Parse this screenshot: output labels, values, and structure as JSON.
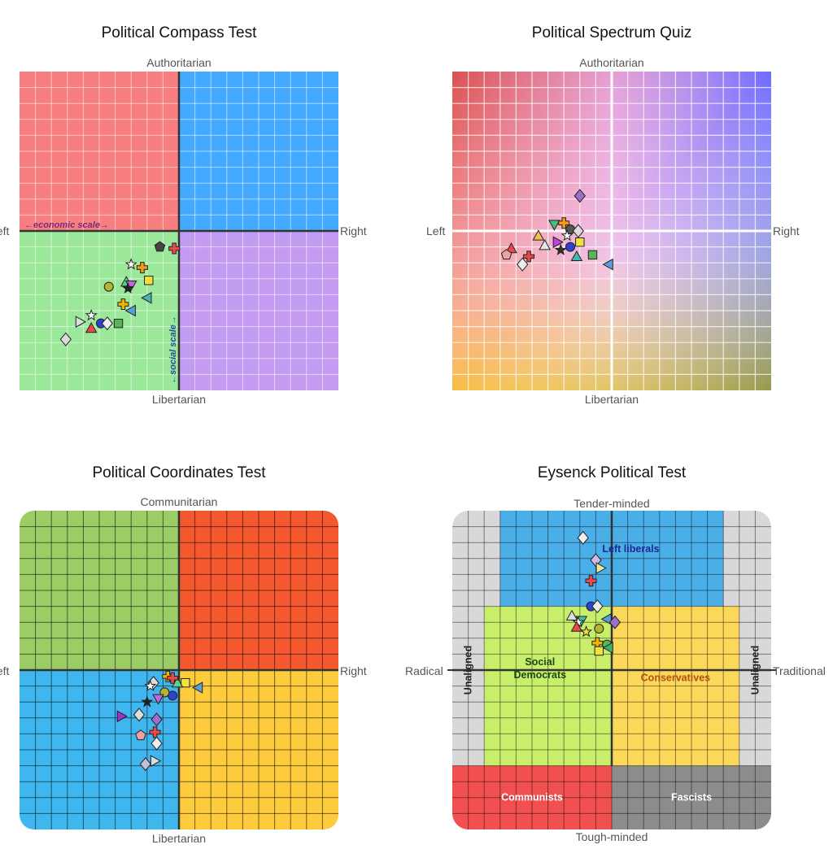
{
  "charts": [
    {
      "id": "compass",
      "title": "Political Compass Test",
      "top_label": "Authoritarian",
      "bottom_label": "Libertarian",
      "left_label": "Left",
      "right_label": "Right",
      "inner_labels": {
        "x_scale": "←economic scale→",
        "y_scale": "←social scale→"
      },
      "quadrant_colors": {
        "top_left": "#f77f7f",
        "top_right": "#44aaff",
        "bottom_left": "#9be89b",
        "bottom_right": "#c39cf2"
      }
    },
    {
      "id": "spectrum",
      "title": "Political Spectrum Quiz",
      "top_label": "Authoritarian",
      "bottom_label": "Libertarian",
      "left_label": "Left",
      "right_label": "Right"
    },
    {
      "id": "coordinates",
      "title": "Political Coordinates Test",
      "top_label": "Communitarian",
      "bottom_label": "Libertarian",
      "left_label": "Left",
      "right_label": "Right",
      "quadrant_colors": {
        "top_left": "#9ccc65",
        "top_right": "#f4582f",
        "bottom_left": "#3fb6ee",
        "bottom_right": "#fdcb3c"
      }
    },
    {
      "id": "eysenck",
      "title": "Eysenck Political Test",
      "top_label": "Tender-minded",
      "bottom_label": "Tough-minded",
      "left_label": "Radical",
      "right_label": "Traditional",
      "regions": {
        "left_liberals": "Left liberals",
        "social_democrats": "Social\nDemocrats",
        "conservatives": "Conservatives",
        "communists": "Communists",
        "fascists": "Fascists",
        "unaligned_left": "Unaligned",
        "unaligned_right": "Unaligned"
      },
      "region_colors": {
        "unaligned": "#d8d8d8",
        "left_liberals": "#4aaee8",
        "social_democrats": "#c8ee6a",
        "conservatives": "#fcd85a",
        "communists": "#f05050",
        "fascists": "#8c8c8c"
      }
    }
  ],
  "chart_data": [
    {
      "type": "scatter",
      "title": "Political Compass Test",
      "xlabel": "Left / Right",
      "ylabel": "Authoritarian / Libertarian",
      "xlim": [
        -10,
        10
      ],
      "ylim": [
        -10,
        10
      ],
      "points": [
        {
          "shape": "pentagon",
          "color": "#444444",
          "x": -1.2,
          "y": -1.0
        },
        {
          "shape": "cross",
          "color": "#e84a4a",
          "x": -0.3,
          "y": -1.1
        },
        {
          "shape": "star",
          "color": "#ffffff",
          "x": -3.0,
          "y": -2.1
        },
        {
          "shape": "cross",
          "color": "#f39c12",
          "x": -2.3,
          "y": -2.3
        },
        {
          "shape": "square",
          "color": "#f4e23c",
          "x": -1.9,
          "y": -3.1
        },
        {
          "shape": "circle",
          "color": "#b5b52a",
          "x": -4.4,
          "y": -3.5
        },
        {
          "shape": "triangle-up",
          "color": "#5fd08a",
          "x": -3.3,
          "y": -3.2
        },
        {
          "shape": "triangle-down",
          "color": "#c066e0",
          "x": -3.0,
          "y": -3.4
        },
        {
          "shape": "star",
          "color": "#222222",
          "x": -3.2,
          "y": -3.6
        },
        {
          "shape": "triangle-left",
          "color": "#4ab3b3",
          "x": -2.0,
          "y": -4.2
        },
        {
          "shape": "cross",
          "color": "#f4b400",
          "x": -3.5,
          "y": -4.6
        },
        {
          "shape": "triangle-left",
          "color": "#5aa0d6",
          "x": -3.0,
          "y": -5.0
        },
        {
          "shape": "star",
          "color": "#ffffff",
          "x": -5.5,
          "y": -5.3
        },
        {
          "shape": "triangle-right",
          "color": "#dddddd",
          "x": -6.2,
          "y": -5.7
        },
        {
          "shape": "circle",
          "color": "#3040d0",
          "x": -4.9,
          "y": -5.8
        },
        {
          "shape": "diamond",
          "color": "#eeeeee",
          "x": -4.5,
          "y": -5.8
        },
        {
          "shape": "square",
          "color": "#5ab55a",
          "x": -3.8,
          "y": -5.8
        },
        {
          "shape": "triangle-up",
          "color": "#e84a4a",
          "x": -5.5,
          "y": -6.1
        },
        {
          "shape": "diamond",
          "color": "#dddddd",
          "x": -7.1,
          "y": -6.8
        }
      ]
    },
    {
      "type": "scatter",
      "title": "Political Spectrum Quiz",
      "xlabel": "Left / Right",
      "ylabel": "Authoritarian / Libertarian",
      "xlim": [
        -10,
        10
      ],
      "ylim": [
        -10,
        10
      ],
      "points": [
        {
          "shape": "diamond",
          "color": "#9a70c8",
          "x": -2.0,
          "y": 2.2
        },
        {
          "shape": "triangle-down",
          "color": "#40c080",
          "x": -3.6,
          "y": 0.4
        },
        {
          "shape": "triangle-up",
          "color": "#e8e8e8",
          "x": -4.2,
          "y": -0.9
        },
        {
          "shape": "triangle-up",
          "color": "#f0c050",
          "x": -4.6,
          "y": -0.3
        },
        {
          "shape": "cross",
          "color": "#f39c12",
          "x": -3.0,
          "y": 0.5
        },
        {
          "shape": "circle",
          "color": "#555555",
          "x": -2.6,
          "y": 0.1
        },
        {
          "shape": "diamond",
          "color": "#dddddd",
          "x": -2.1,
          "y": 0.0
        },
        {
          "shape": "star",
          "color": "#ffffff",
          "x": -2.8,
          "y": -0.3
        },
        {
          "shape": "triangle-right",
          "color": "#c040e0",
          "x": -3.4,
          "y": -0.7
        },
        {
          "shape": "square",
          "color": "#f4e23c",
          "x": -2.0,
          "y": -0.7
        },
        {
          "shape": "star",
          "color": "#333333",
          "x": -3.2,
          "y": -1.2
        },
        {
          "shape": "circle",
          "color": "#3040d0",
          "x": -2.6,
          "y": -1.0
        },
        {
          "shape": "triangle-up",
          "color": "#e84a4a",
          "x": -6.3,
          "y": -1.1
        },
        {
          "shape": "pentagon",
          "color": "#f0a0a0",
          "x": -6.6,
          "y": -1.5
        },
        {
          "shape": "cross",
          "color": "#e84a4a",
          "x": -5.2,
          "y": -1.6
        },
        {
          "shape": "square",
          "color": "#5ab55a",
          "x": -1.2,
          "y": -1.5
        },
        {
          "shape": "triangle-up",
          "color": "#4ab3b3",
          "x": -2.2,
          "y": -1.6
        },
        {
          "shape": "triangle-left",
          "color": "#5aa0d6",
          "x": -0.2,
          "y": -2.1
        },
        {
          "shape": "diamond",
          "color": "#eeeeee",
          "x": -5.6,
          "y": -2.1
        }
      ]
    },
    {
      "type": "scatter",
      "title": "Political Coordinates Test",
      "xlabel": "Left / Right",
      "ylabel": "Communitarian / Libertarian",
      "xlim": [
        -10,
        10
      ],
      "ylim": [
        -10,
        10
      ],
      "points": [
        {
          "shape": "cross",
          "color": "#f4b400",
          "x": -0.7,
          "y": -0.4
        },
        {
          "shape": "square",
          "color": "#f4e23c",
          "x": 0.4,
          "y": -0.8
        },
        {
          "shape": "triangle-left",
          "color": "#5aa0d6",
          "x": 1.2,
          "y": -1.1
        },
        {
          "shape": "triangle-up",
          "color": "#5fd08a",
          "x": -0.1,
          "y": -0.8
        },
        {
          "shape": "cross",
          "color": "#e84a4a",
          "x": -0.4,
          "y": -0.5
        },
        {
          "shape": "diamond",
          "color": "#dddddd",
          "x": -1.6,
          "y": -0.8
        },
        {
          "shape": "star",
          "color": "#ffffff",
          "x": -1.8,
          "y": -1.0
        },
        {
          "shape": "circle",
          "color": "#3040d0",
          "x": -0.4,
          "y": -1.6
        },
        {
          "shape": "circle",
          "color": "#b5b52a",
          "x": -0.9,
          "y": -1.4
        },
        {
          "shape": "triangle-down",
          "color": "#c066e0",
          "x": -1.3,
          "y": -1.8
        },
        {
          "shape": "star",
          "color": "#222222",
          "x": -2.0,
          "y": -2.0
        },
        {
          "shape": "diamond",
          "color": "#dddddd",
          "x": -2.5,
          "y": -2.8
        },
        {
          "shape": "triangle-right",
          "color": "#a030d0",
          "x": -3.6,
          "y": -2.9
        },
        {
          "shape": "diamond",
          "color": "#9a70c8",
          "x": -1.4,
          "y": -3.1
        },
        {
          "shape": "cross",
          "color": "#e84a4a",
          "x": -1.5,
          "y": -3.9
        },
        {
          "shape": "pentagon",
          "color": "#f0a0a0",
          "x": -2.4,
          "y": -4.1
        },
        {
          "shape": "diamond",
          "color": "#eeeeee",
          "x": -1.4,
          "y": -4.6
        },
        {
          "shape": "triangle-right",
          "color": "#dddddd",
          "x": -1.5,
          "y": -5.7
        },
        {
          "shape": "diamond",
          "color": "#c0c0d8",
          "x": -2.1,
          "y": -5.9
        }
      ]
    },
    {
      "type": "scatter",
      "title": "Eysenck Political Test",
      "xlabel": "Radical / Traditional",
      "ylabel": "Tender-minded / Tough-minded",
      "xlim": [
        -10,
        10
      ],
      "ylim": [
        -10,
        10
      ],
      "points": [
        {
          "shape": "diamond",
          "color": "#eeeeee",
          "x": -1.8,
          "y": 8.3
        },
        {
          "shape": "diamond",
          "color": "#d0b8e8",
          "x": -1.0,
          "y": 6.9
        },
        {
          "shape": "triangle-right",
          "color": "#e8e8a0",
          "x": -0.7,
          "y": 6.4
        },
        {
          "shape": "cross",
          "color": "#e84a4a",
          "x": -1.3,
          "y": 5.6
        },
        {
          "shape": "circle",
          "color": "#3040d0",
          "x": -1.3,
          "y": 4.0
        },
        {
          "shape": "diamond",
          "color": "#eeeeee",
          "x": -0.9,
          "y": 4.0
        },
        {
          "shape": "triangle-up",
          "color": "#dddddd",
          "x": -2.5,
          "y": 3.4
        },
        {
          "shape": "triangle-down",
          "color": "#40c0a0",
          "x": -1.9,
          "y": 3.1
        },
        {
          "shape": "triangle-left",
          "color": "#5aa0d6",
          "x": -0.3,
          "y": 3.2
        },
        {
          "shape": "diamond",
          "color": "#9a70c8",
          "x": 0.2,
          "y": 3.0
        },
        {
          "shape": "star",
          "color": "#ffffff",
          "x": -2.1,
          "y": 3.0
        },
        {
          "shape": "triangle-up",
          "color": "#e84a4a",
          "x": -2.2,
          "y": 2.7
        },
        {
          "shape": "circle",
          "color": "#b5b52a",
          "x": -0.8,
          "y": 2.6
        },
        {
          "shape": "star",
          "color": "#f4e23c",
          "x": -1.6,
          "y": 2.4
        },
        {
          "shape": "cross",
          "color": "#f4b400",
          "x": -0.9,
          "y": 1.7
        },
        {
          "shape": "circle",
          "color": "#5ab55a",
          "x": -0.3,
          "y": 1.6
        },
        {
          "shape": "triangle-left",
          "color": "#40b070",
          "x": -0.2,
          "y": 1.4
        },
        {
          "shape": "square",
          "color": "#f4e23c",
          "x": -0.8,
          "y": 1.2
        }
      ]
    }
  ]
}
